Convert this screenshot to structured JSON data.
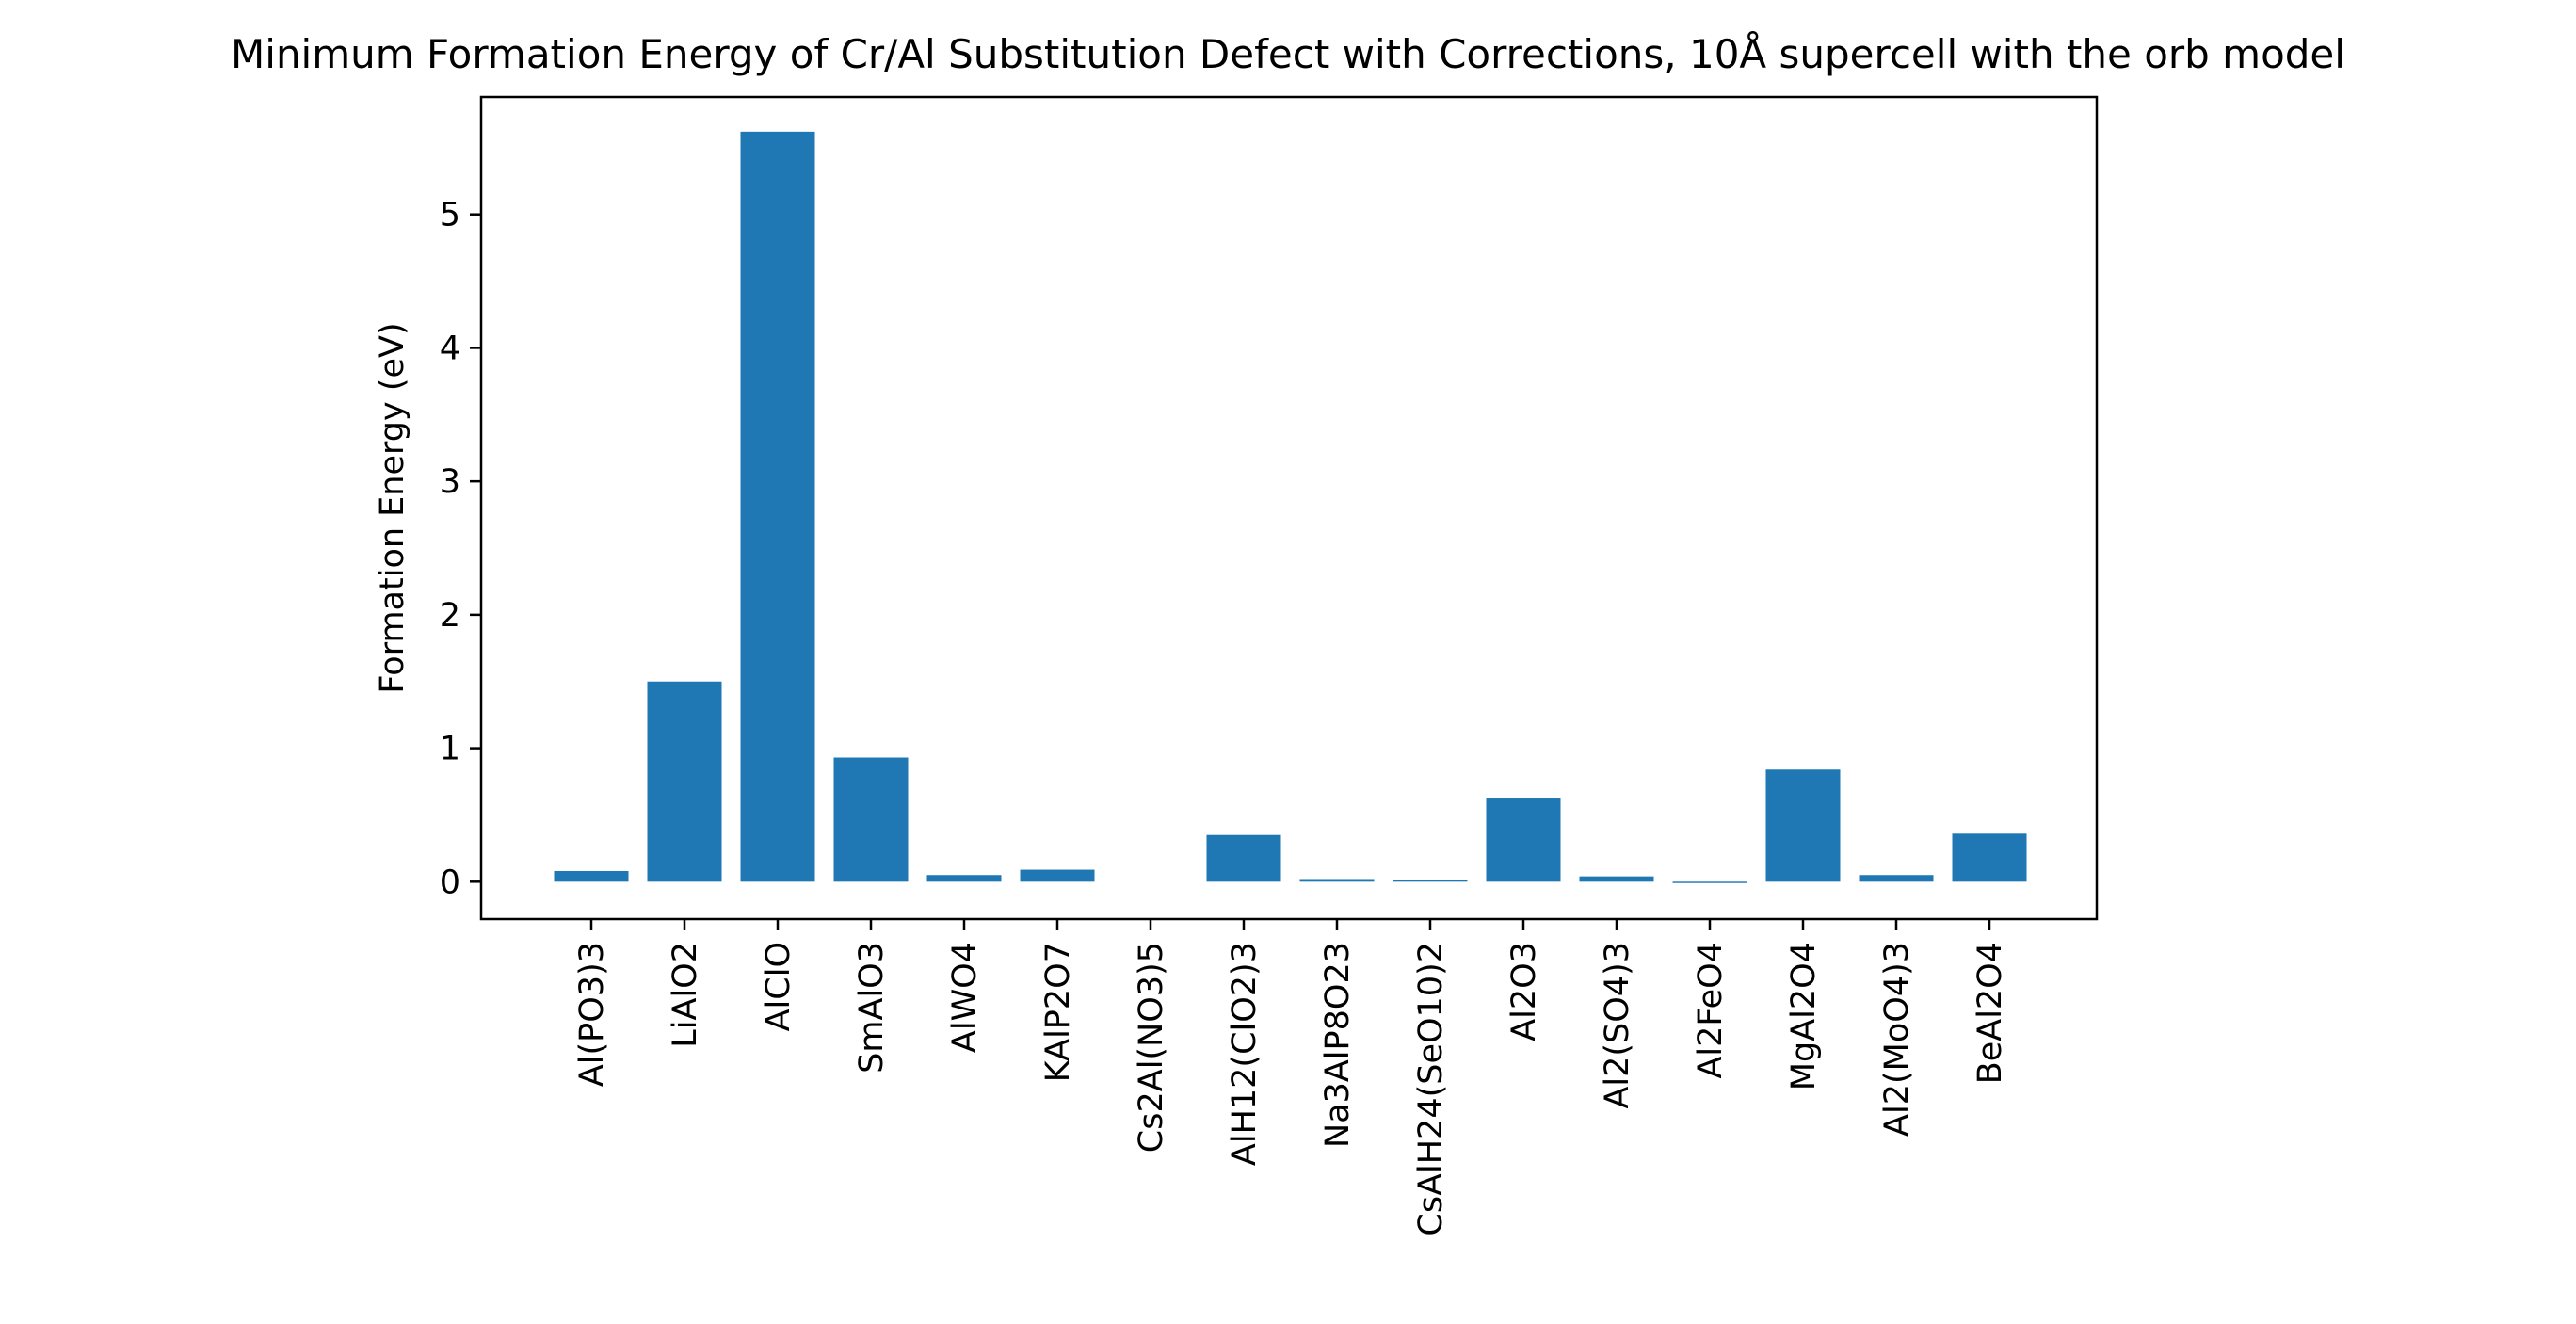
{
  "chart_data": {
    "type": "bar",
    "title": "Minimum Formation Energy of Cr/Al Substitution Defect with Corrections, 10Å supercell with the orb model",
    "xlabel": "",
    "ylabel": "Formation Energy (eV)",
    "ylim": [
      -0.28,
      5.88
    ],
    "yticks": [
      0,
      1,
      2,
      3,
      4,
      5
    ],
    "grid": false,
    "bar_color": "#1f77b4",
    "categories": [
      "Al(PO3)3",
      "LiAlO2",
      "AlClO",
      "SmAlO3",
      "AlWO4",
      "KAlP2O7",
      "Cs2Al(NO3)5",
      "AlH12(ClO2)3",
      "Na3AlP8O23",
      "CsAlH24(SeO10)2",
      "Al2O3",
      "Al2(SO4)3",
      "Al2FeO4",
      "MgAl2O4",
      "Al2(MoO4)3",
      "BeAl2O4"
    ],
    "values": [
      0.08,
      1.5,
      5.62,
      0.93,
      0.05,
      0.09,
      0.0,
      0.35,
      0.02,
      0.01,
      0.63,
      0.04,
      -0.01,
      0.84,
      0.05,
      0.36
    ]
  }
}
